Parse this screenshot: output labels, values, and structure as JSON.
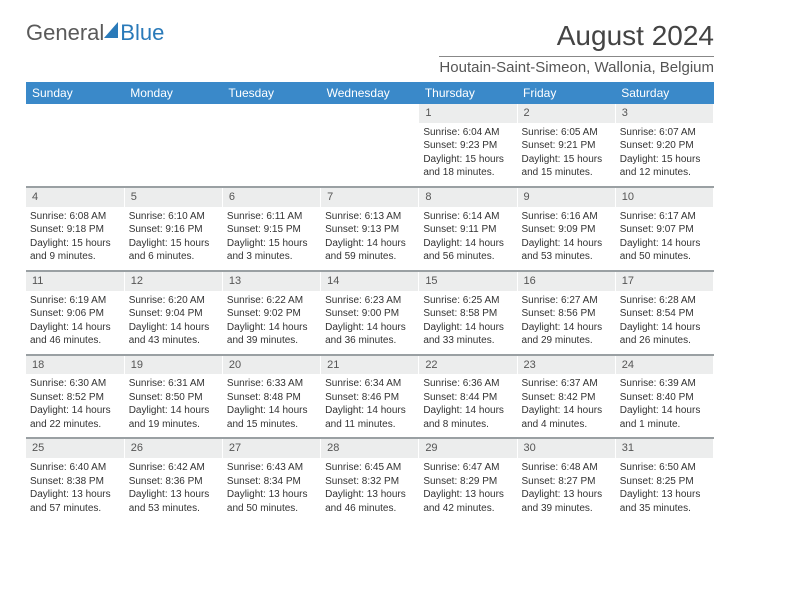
{
  "brand": {
    "part1": "General",
    "part2": "Blue"
  },
  "title": "August 2024",
  "location": "Houtain-Saint-Simeon, Wallonia, Belgium",
  "colors": {
    "header_bg": "#3a89c9",
    "daynum_bg": "#eceded",
    "daynum_border": "#9aa0a3",
    "text": "#333333",
    "brand_gray": "#5a5a5a",
    "brand_blue": "#2a7ab9"
  },
  "weekdays": [
    "Sunday",
    "Monday",
    "Tuesday",
    "Wednesday",
    "Thursday",
    "Friday",
    "Saturday"
  ],
  "weeks": [
    [
      null,
      null,
      null,
      null,
      {
        "n": "1",
        "sunrise": "6:04 AM",
        "sunset": "9:23 PM",
        "daylight": "15 hours and 18 minutes."
      },
      {
        "n": "2",
        "sunrise": "6:05 AM",
        "sunset": "9:21 PM",
        "daylight": "15 hours and 15 minutes."
      },
      {
        "n": "3",
        "sunrise": "6:07 AM",
        "sunset": "9:20 PM",
        "daylight": "15 hours and 12 minutes."
      }
    ],
    [
      {
        "n": "4",
        "sunrise": "6:08 AM",
        "sunset": "9:18 PM",
        "daylight": "15 hours and 9 minutes."
      },
      {
        "n": "5",
        "sunrise": "6:10 AM",
        "sunset": "9:16 PM",
        "daylight": "15 hours and 6 minutes."
      },
      {
        "n": "6",
        "sunrise": "6:11 AM",
        "sunset": "9:15 PM",
        "daylight": "15 hours and 3 minutes."
      },
      {
        "n": "7",
        "sunrise": "6:13 AM",
        "sunset": "9:13 PM",
        "daylight": "14 hours and 59 minutes."
      },
      {
        "n": "8",
        "sunrise": "6:14 AM",
        "sunset": "9:11 PM",
        "daylight": "14 hours and 56 minutes."
      },
      {
        "n": "9",
        "sunrise": "6:16 AM",
        "sunset": "9:09 PM",
        "daylight": "14 hours and 53 minutes."
      },
      {
        "n": "10",
        "sunrise": "6:17 AM",
        "sunset": "9:07 PM",
        "daylight": "14 hours and 50 minutes."
      }
    ],
    [
      {
        "n": "11",
        "sunrise": "6:19 AM",
        "sunset": "9:06 PM",
        "daylight": "14 hours and 46 minutes."
      },
      {
        "n": "12",
        "sunrise": "6:20 AM",
        "sunset": "9:04 PM",
        "daylight": "14 hours and 43 minutes."
      },
      {
        "n": "13",
        "sunrise": "6:22 AM",
        "sunset": "9:02 PM",
        "daylight": "14 hours and 39 minutes."
      },
      {
        "n": "14",
        "sunrise": "6:23 AM",
        "sunset": "9:00 PM",
        "daylight": "14 hours and 36 minutes."
      },
      {
        "n": "15",
        "sunrise": "6:25 AM",
        "sunset": "8:58 PM",
        "daylight": "14 hours and 33 minutes."
      },
      {
        "n": "16",
        "sunrise": "6:27 AM",
        "sunset": "8:56 PM",
        "daylight": "14 hours and 29 minutes."
      },
      {
        "n": "17",
        "sunrise": "6:28 AM",
        "sunset": "8:54 PM",
        "daylight": "14 hours and 26 minutes."
      }
    ],
    [
      {
        "n": "18",
        "sunrise": "6:30 AM",
        "sunset": "8:52 PM",
        "daylight": "14 hours and 22 minutes."
      },
      {
        "n": "19",
        "sunrise": "6:31 AM",
        "sunset": "8:50 PM",
        "daylight": "14 hours and 19 minutes."
      },
      {
        "n": "20",
        "sunrise": "6:33 AM",
        "sunset": "8:48 PM",
        "daylight": "14 hours and 15 minutes."
      },
      {
        "n": "21",
        "sunrise": "6:34 AM",
        "sunset": "8:46 PM",
        "daylight": "14 hours and 11 minutes."
      },
      {
        "n": "22",
        "sunrise": "6:36 AM",
        "sunset": "8:44 PM",
        "daylight": "14 hours and 8 minutes."
      },
      {
        "n": "23",
        "sunrise": "6:37 AM",
        "sunset": "8:42 PM",
        "daylight": "14 hours and 4 minutes."
      },
      {
        "n": "24",
        "sunrise": "6:39 AM",
        "sunset": "8:40 PM",
        "daylight": "14 hours and 1 minute."
      }
    ],
    [
      {
        "n": "25",
        "sunrise": "6:40 AM",
        "sunset": "8:38 PM",
        "daylight": "13 hours and 57 minutes."
      },
      {
        "n": "26",
        "sunrise": "6:42 AM",
        "sunset": "8:36 PM",
        "daylight": "13 hours and 53 minutes."
      },
      {
        "n": "27",
        "sunrise": "6:43 AM",
        "sunset": "8:34 PM",
        "daylight": "13 hours and 50 minutes."
      },
      {
        "n": "28",
        "sunrise": "6:45 AM",
        "sunset": "8:32 PM",
        "daylight": "13 hours and 46 minutes."
      },
      {
        "n": "29",
        "sunrise": "6:47 AM",
        "sunset": "8:29 PM",
        "daylight": "13 hours and 42 minutes."
      },
      {
        "n": "30",
        "sunrise": "6:48 AM",
        "sunset": "8:27 PM",
        "daylight": "13 hours and 39 minutes."
      },
      {
        "n": "31",
        "sunrise": "6:50 AM",
        "sunset": "8:25 PM",
        "daylight": "13 hours and 35 minutes."
      }
    ]
  ],
  "labels": {
    "sunrise": "Sunrise:",
    "sunset": "Sunset:",
    "daylight": "Daylight:"
  }
}
